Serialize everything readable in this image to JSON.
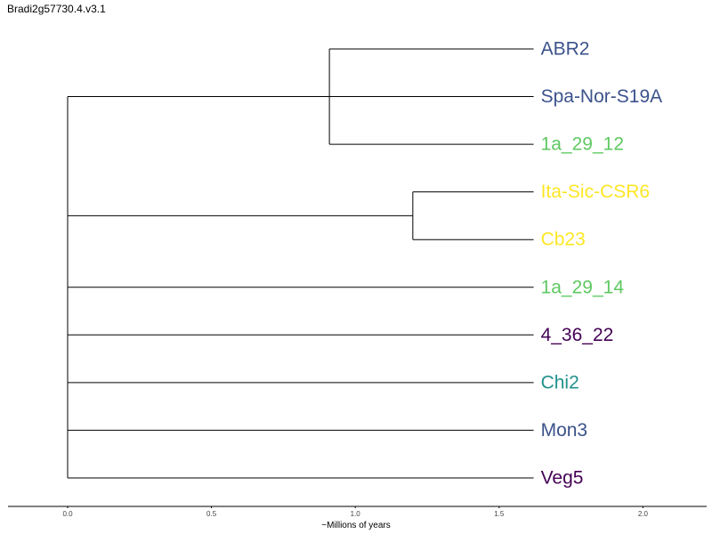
{
  "title": "Bradi2g57730.4.v3.1",
  "axis": {
    "label": "~Millions of years",
    "ticks": [
      "0.0",
      "0.5",
      "1.0",
      "1.5",
      "2.0"
    ],
    "tick_values": [
      0.0,
      0.5,
      1.0,
      1.5,
      2.0
    ]
  },
  "tree": {
    "tips": [
      {
        "name": "ABR2",
        "color": "#3b528b"
      },
      {
        "name": "Spa-Nor-S19A",
        "color": "#3b528b"
      },
      {
        "name": "1a_29_12",
        "color": "#5ec962"
      },
      {
        "name": "Ita-Sic-CSR6",
        "color": "#fde725"
      },
      {
        "name": "Cb23",
        "color": "#fde725"
      },
      {
        "name": "1a_29_14",
        "color": "#5ec962"
      },
      {
        "name": "4_36_22",
        "color": "#440154"
      },
      {
        "name": "Chi2",
        "color": "#21918c"
      },
      {
        "name": "Mon3",
        "color": "#3b528b"
      },
      {
        "name": "Veg5",
        "color": "#440154"
      }
    ],
    "tip_age": 1.62,
    "clades": [
      {
        "members": [
          0,
          1,
          2
        ],
        "node_age": 0.91
      },
      {
        "members": [
          3,
          4
        ],
        "node_age": 1.2
      }
    ]
  }
}
